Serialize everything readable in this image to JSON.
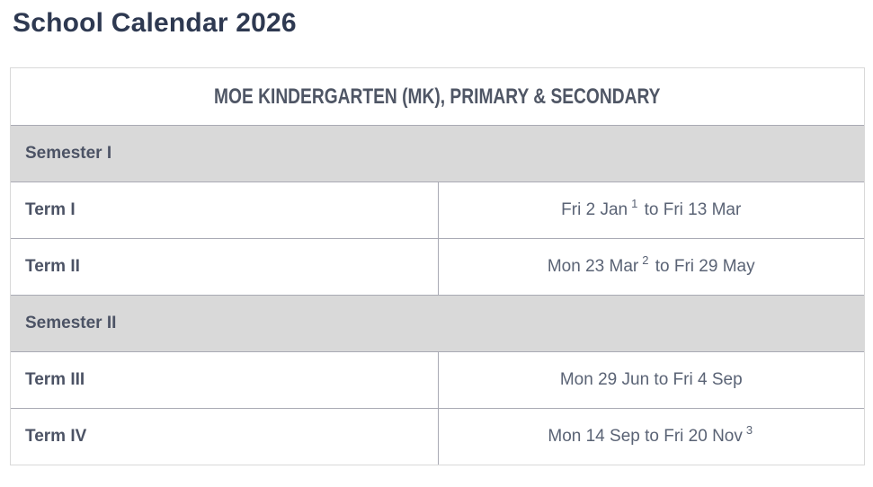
{
  "page": {
    "title": "School Calendar 2026"
  },
  "colors": {
    "title_text": "#2e3951",
    "header_text": "#4f5665",
    "label_text": "#4c5365",
    "date_text": "#5a6375",
    "semester_band_bg": "#d9d9d9",
    "outer_border": "#d9d9d9",
    "inner_border": "#a9aab4"
  },
  "table": {
    "header": "MOE KINDERGARTEN (MK), PRIMARY & SECONDARY",
    "rows": [
      {
        "type": "semester",
        "text": "Semester I"
      },
      {
        "type": "term",
        "term": "Term I",
        "date_pre": "Fri 2 Jan",
        "date_sup": "1",
        "date_post": " to Fri 13 Mar"
      },
      {
        "type": "term",
        "term": "Term II",
        "date_pre": "Mon 23 Mar",
        "date_sup": "2",
        "date_post": " to Fri 29 May"
      },
      {
        "type": "semester",
        "text": "Semester II"
      },
      {
        "type": "term",
        "term": "Term III",
        "date_pre": "Mon 29 Jun to Fri 4 Sep",
        "date_sup": "",
        "date_post": ""
      },
      {
        "type": "term",
        "term": "Term IV",
        "date_pre": "Mon 14 Sep to Fri 20 Nov",
        "date_sup": "3",
        "date_post": ""
      }
    ]
  }
}
